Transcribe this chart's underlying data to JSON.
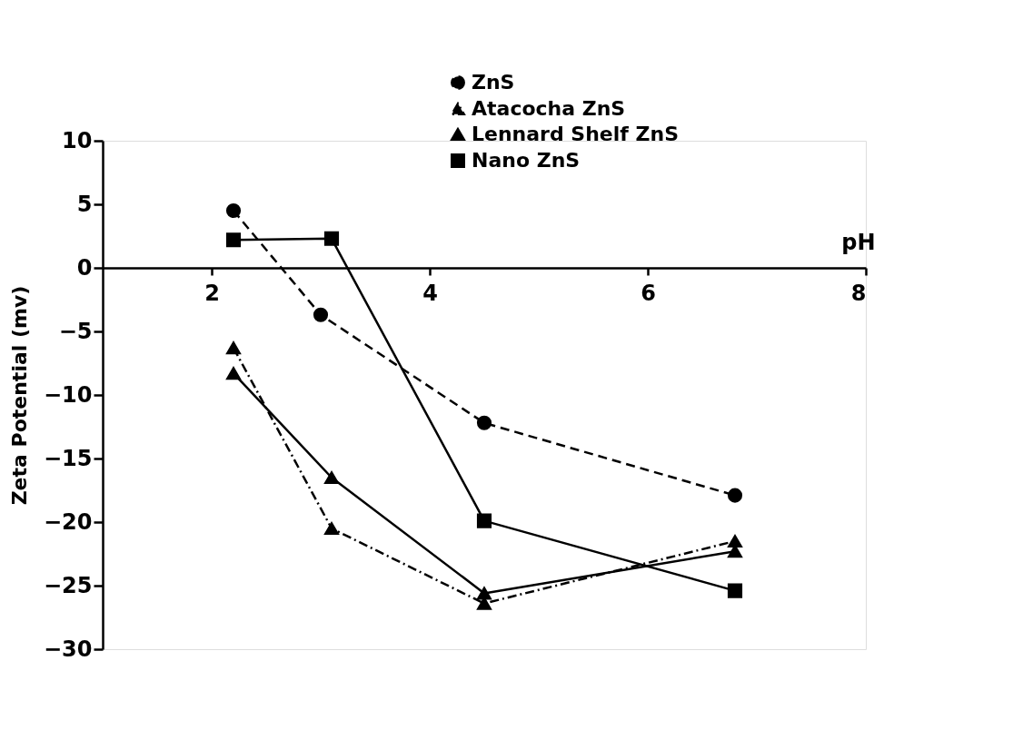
{
  "chart_data": {
    "type": "line",
    "ylabel": "Zeta Potential (mv)",
    "xlabel": "pH",
    "xlim": [
      1,
      8
    ],
    "ylim": [
      -30,
      10
    ],
    "xticks": [
      2,
      4,
      6,
      8
    ],
    "yticks": [
      -30,
      -25,
      -20,
      -15,
      -10,
      -5,
      0,
      5,
      10
    ],
    "grid": false,
    "legend": "top right",
    "series": [
      {
        "name": "ZnS",
        "color": "#000000",
        "x": [
          2.2,
          3.0,
          4.5,
          6.8
        ],
        "values": [
          4.5,
          -3.7,
          -12.2,
          -17.9
        ],
        "marker": "circle",
        "line_style": "dashed"
      },
      {
        "name": "Atacocha ZnS",
        "color": "#000000",
        "x": [
          2.2,
          3.1,
          4.5,
          6.8
        ],
        "values": [
          -6.3,
          -20.5,
          -26.4,
          -21.5
        ],
        "marker": "triangle",
        "line_style": "dashdot"
      },
      {
        "name": "Lennard Shelf ZnS",
        "color": "#000000",
        "x": [
          2.2,
          3.1,
          4.5,
          6.8
        ],
        "values": [
          -8.3,
          -16.5,
          -25.6,
          -22.3
        ],
        "marker": "triangle",
        "line_style": "solid"
      },
      {
        "name": "Nano ZnS",
        "color": "#000000",
        "x": [
          2.2,
          3.1,
          4.5,
          6.8
        ],
        "values": [
          2.2,
          2.3,
          -19.9,
          -25.4
        ],
        "marker": "square",
        "line_style": "solid"
      }
    ]
  }
}
